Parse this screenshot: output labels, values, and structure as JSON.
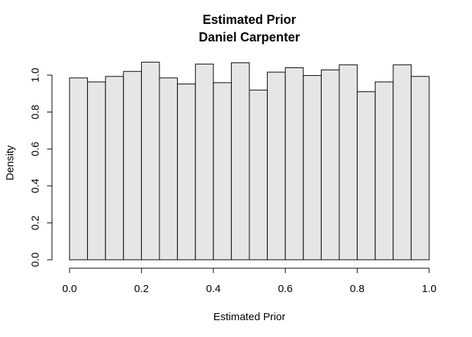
{
  "chart_data": {
    "type": "bar",
    "title": "Estimated Prior",
    "subtitle": "Daniel Carpenter",
    "xlabel": "Estimated Prior",
    "ylabel": "Density",
    "xlim": [
      0,
      1
    ],
    "ylim": [
      0,
      1.0
    ],
    "bin_width": 0.05,
    "bin_starts": [
      0.0,
      0.05,
      0.1,
      0.15,
      0.2,
      0.25,
      0.3,
      0.35,
      0.4,
      0.45,
      0.5,
      0.55,
      0.6,
      0.65,
      0.7,
      0.75,
      0.8,
      0.85,
      0.9,
      0.95
    ],
    "values": [
      0.985,
      0.963,
      0.993,
      1.02,
      1.07,
      0.985,
      0.952,
      1.06,
      0.959,
      1.067,
      0.919,
      1.016,
      1.04,
      0.998,
      1.028,
      1.056,
      0.91,
      0.963,
      1.056,
      0.993
    ],
    "x_ticks": [
      0.0,
      0.2,
      0.4,
      0.6,
      0.8,
      1.0
    ],
    "x_tick_labels": [
      "0.0",
      "0.2",
      "0.4",
      "0.6",
      "0.8",
      "1.0"
    ],
    "y_ticks": [
      0.0,
      0.2,
      0.4,
      0.6,
      0.8,
      1.0
    ],
    "y_tick_labels": [
      "0.0",
      "0.2",
      "0.4",
      "0.6",
      "0.8",
      "1.0"
    ],
    "grid": false,
    "bar_fill": "#e6e6e6",
    "bar_stroke": "#000000"
  }
}
